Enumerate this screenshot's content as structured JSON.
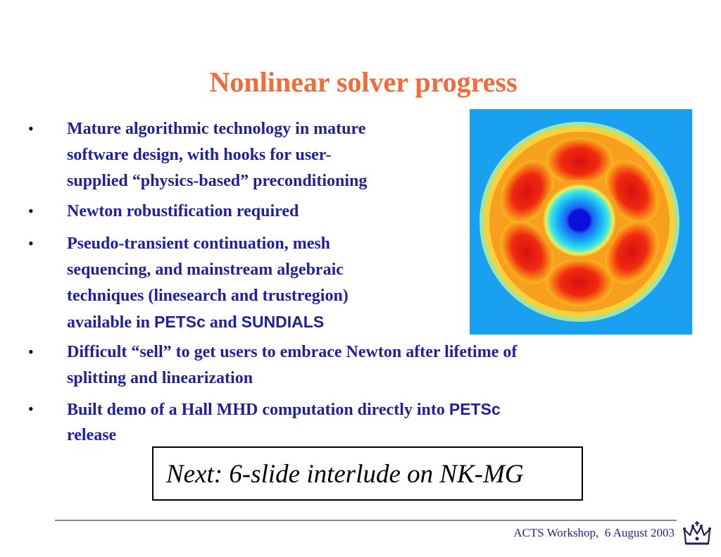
{
  "slide": {
    "title": "Nonlinear solver progress",
    "bullets": [
      {
        "lines": [
          [
            {
              "t": "Mature algorithmic technology in mature"
            }
          ],
          [
            {
              "t": "software design, with hooks for user-"
            }
          ],
          [
            {
              "t": "supplied “physics-based” preconditioning"
            }
          ]
        ]
      },
      {
        "lines": [
          [
            {
              "t": "Newton robustification required"
            }
          ]
        ]
      },
      {
        "lines": [
          [
            {
              "t": "Pseudo-transient continuation, mesh"
            }
          ],
          [
            {
              "t": "sequencing, and mainstream algebraic"
            }
          ],
          [
            {
              "t": "techniques (linesearch and trustregion)"
            }
          ],
          [
            {
              "t": "available in "
            },
            {
              "t": "PETSc",
              "sans": true
            },
            {
              "t": " and "
            },
            {
              "t": "SUNDIALS",
              "sans": true
            }
          ]
        ]
      },
      {
        "lines": [
          [
            {
              "t": "Difficult “sell” to get users to embrace Newton after lifetime of"
            }
          ],
          [
            {
              "t": "splitting and linearization"
            }
          ]
        ]
      },
      {
        "lines": [
          [
            {
              "t": "Built demo of a Hall MHD computation directly into "
            },
            {
              "t": "PETSc",
              "sans": true
            }
          ],
          [
            {
              "t": "release"
            }
          ]
        ]
      }
    ],
    "bullet_symbol": "•",
    "next_box": "Next: 6-slide interlude on NK-MG",
    "footer": "ACTS Workshop,  6 August 2003",
    "colors": {
      "title": "#f26b3a",
      "body_text": "#1f1fa0",
      "figure_background": "#1aa0f0"
    },
    "icons": [
      "simulation-contour-image",
      "crown-logo-icon"
    ]
  }
}
